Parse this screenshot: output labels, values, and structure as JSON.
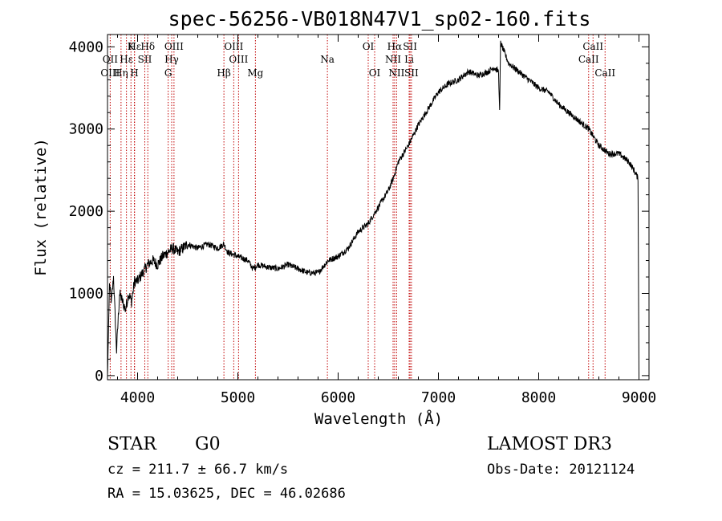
{
  "chart_data": {
    "type": "line",
    "title": "spec-56256-VB018N47V1_sp02-160.fits",
    "xlabel": "Wavelength (Å)",
    "ylabel": "Flux (relative)",
    "xlim": [
      3700,
      9100
    ],
    "ylim": [
      -50,
      4150
    ],
    "xticks": [
      4000,
      5000,
      6000,
      7000,
      8000,
      9000
    ],
    "yticks": [
      0,
      1000,
      2000,
      3000,
      4000
    ],
    "line_markers": [
      {
        "label": "Hε",
        "wavelength": 3970,
        "row": 0
      },
      {
        "label": "K",
        "wavelength": 3934,
        "row": 0
      },
      {
        "label": "Hδ",
        "wavelength": 4102,
        "row": 0
      },
      {
        "label": "OIII",
        "wavelength": 4363,
        "row": 0
      },
      {
        "label": "OIII",
        "wavelength": 4959,
        "row": 0
      },
      {
        "label": "OI",
        "wavelength": 6300,
        "row": 0
      },
      {
        "label": "Hα",
        "wavelength": 6563,
        "row": 0
      },
      {
        "label": "SII",
        "wavelength": 6717,
        "row": 0
      },
      {
        "label": "CaII",
        "wavelength": 8542,
        "row": 0
      },
      {
        "label": "OII",
        "wavelength": 3727,
        "row": 1
      },
      {
        "label": "Hε",
        "wavelength": 3889,
        "row": 1
      },
      {
        "label": "SII",
        "wavelength": 4072,
        "row": 1
      },
      {
        "label": "Hγ",
        "wavelength": 4340,
        "row": 1
      },
      {
        "label": "OIII",
        "wavelength": 5007,
        "row": 1
      },
      {
        "label": "Na",
        "wavelength": 5893,
        "row": 1
      },
      {
        "label": "NII",
        "wavelength": 6548,
        "row": 1
      },
      {
        "label": "Li",
        "wavelength": 6708,
        "row": 1
      },
      {
        "label": "CaII",
        "wavelength": 8498,
        "row": 1
      },
      {
        "label": "OIII",
        "wavelength": 3727,
        "row": 2
      },
      {
        "label": "Hη",
        "wavelength": 3835,
        "row": 2
      },
      {
        "label": "H",
        "wavelength": 3968,
        "row": 2
      },
      {
        "label": "G",
        "wavelength": 4305,
        "row": 2
      },
      {
        "label": "Hβ",
        "wavelength": 4861,
        "row": 2
      },
      {
        "label": "Mg",
        "wavelength": 5175,
        "row": 2
      },
      {
        "label": "OI",
        "wavelength": 6364,
        "row": 2
      },
      {
        "label": "NII",
        "wavelength": 6583,
        "row": 2
      },
      {
        "label": "SII",
        "wavelength": 6731,
        "row": 2
      },
      {
        "label": "CaII",
        "wavelength": 8662,
        "row": 2
      }
    ],
    "series": [
      {
        "name": "flux",
        "x": [
          3700,
          3720,
          3740,
          3760,
          3790,
          3820,
          3850,
          3880,
          3910,
          3940,
          3970,
          4000,
          4050,
          4100,
          4150,
          4200,
          4250,
          4300,
          4350,
          4400,
          4450,
          4500,
          4600,
          4700,
          4800,
          4860,
          4900,
          5000,
          5100,
          5150,
          5200,
          5300,
          5400,
          5500,
          5600,
          5700,
          5800,
          5900,
          6000,
          6100,
          6200,
          6300,
          6400,
          6500,
          6550,
          6600,
          6700,
          6800,
          6900,
          7000,
          7100,
          7200,
          7300,
          7400,
          7500,
          7550,
          7600,
          7610,
          7620,
          7700,
          7800,
          7900,
          8000,
          8100,
          8200,
          8300,
          8400,
          8500,
          8600,
          8700,
          8800,
          8900,
          8950,
          8990,
          9000
        ],
        "y": [
          0,
          1100,
          900,
          1200,
          300,
          1000,
          900,
          800,
          1000,
          900,
          1150,
          1150,
          1250,
          1350,
          1400,
          1350,
          1450,
          1500,
          1550,
          1500,
          1550,
          1600,
          1550,
          1600,
          1550,
          1600,
          1500,
          1450,
          1400,
          1300,
          1350,
          1320,
          1300,
          1350,
          1300,
          1250,
          1250,
          1400,
          1450,
          1550,
          1750,
          1850,
          2050,
          2250,
          2400,
          2600,
          2800,
          3050,
          3250,
          3450,
          3550,
          3600,
          3700,
          3650,
          3700,
          3750,
          3700,
          3200,
          4050,
          3800,
          3700,
          3600,
          3500,
          3450,
          3300,
          3200,
          3100,
          3000,
          2800,
          2700,
          2700,
          2600,
          2500,
          2400,
          0
        ]
      }
    ]
  },
  "info": {
    "class_label": "STAR",
    "subclass_label": "G0",
    "survey": "LAMOST DR3",
    "velocity": "cz = 211.7 ± 66.7 km/s",
    "obs_date": "Obs-Date: 20121124",
    "coords": "RA =  15.03625, DEC =  46.02686"
  }
}
